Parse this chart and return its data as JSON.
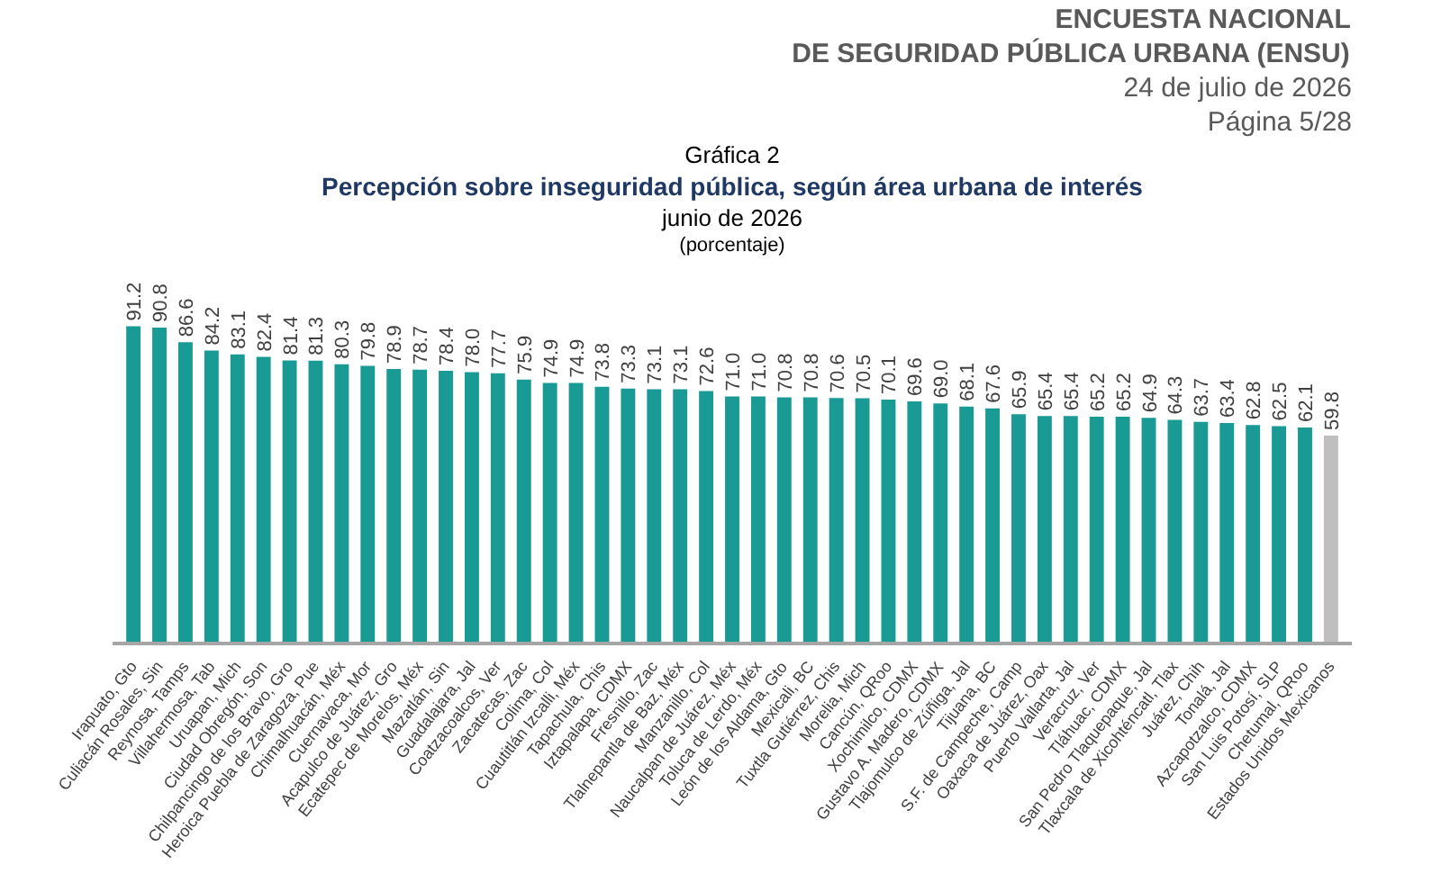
{
  "chart_data": {
    "type": "bar",
    "title": "Gráfica 2",
    "subtitle": "Percepción sobre inseguridad pública, según área urbana de interés",
    "annotations": [
      "ENCUESTA NACIONAL",
      "DE SEGURIDAD PÚBLICA URBANA (ENSU)",
      "24 de julio de 2026",
      "Página 5/28",
      "junio de 2026",
      "(porcentaje)"
    ],
    "categories": [
      "Irapuato, Gto",
      "Culiacán Rosales, Sin",
      "Reynosa, Tamps",
      "Villahermosa, Tab",
      "Uruapan, Mich",
      "Ciudad Obregón, Son",
      "Chilpancingo de los Bravo, Gro",
      "Heroica Puebla de Zaragoza, Pue",
      "Chimalhuacán, Méx",
      "Cuernavaca, Mor",
      "Acapulco de Juárez, Gro",
      "Ecatepec de Morelos, Méx",
      "Mazatlán, Sin",
      "Guadalajara, Jal",
      "Coatzacoalcos, Ver",
      "Zacatecas, Zac",
      "Colima, Col",
      "Cuautitlán Izcalli, Méx",
      "Tapachula, Chis",
      "Iztapalapa, CDMX",
      "Fresnillo, Zac",
      "Tlalnepantla de Baz, Méx",
      "Manzanillo, Col",
      "Naucalpan de Juárez, Méx",
      "Toluca de Lerdo, Méx",
      "León de los Aldama, Gto",
      "Mexicali, BC",
      "Tuxtla Gutiérrez, Chis",
      "Morelia, Mich",
      "Cancún, QRoo",
      "Xochimilco, CDMX",
      "Gustavo A. Madero, CDMX",
      "Tlajomulco de Zúñiga, Jal",
      "Tijuana, BC",
      "S.F. de Campeche, Camp",
      "Oaxaca de Juárez, Oax",
      "Puerto Vallarta, Jal",
      "Veracruz, Ver",
      "Tláhuac, CDMX",
      "San Pedro Tlaquepaque, Jal",
      "Tlaxcala de Xicohténcatl, Tlax",
      "Juárez, Chih",
      "Tonalá, Jal",
      "Azcapotzalco, CDMX",
      "San Luis Potosí, SLP",
      "Chetumal, QRoo",
      "Estados Unidos Mexicanos"
    ],
    "values": [
      91.2,
      90.8,
      86.6,
      84.2,
      83.1,
      82.4,
      81.4,
      81.3,
      80.3,
      79.8,
      78.9,
      78.7,
      78.4,
      78.0,
      77.7,
      75.9,
      74.9,
      74.9,
      73.8,
      73.3,
      73.1,
      73.1,
      72.6,
      71.0,
      71.0,
      70.8,
      70.8,
      70.6,
      70.5,
      70.1,
      69.6,
      69.0,
      68.1,
      67.6,
      65.9,
      65.4,
      65.4,
      65.2,
      65.2,
      64.9,
      64.3,
      63.7,
      63.4,
      62.8,
      62.5,
      62.1,
      59.8
    ],
    "colors": [
      "#1a9a94",
      "#1a9a94",
      "#1a9a94",
      "#1a9a94",
      "#1a9a94",
      "#1a9a94",
      "#1a9a94",
      "#1a9a94",
      "#1a9a94",
      "#1a9a94",
      "#1a9a94",
      "#1a9a94",
      "#1a9a94",
      "#1a9a94",
      "#1a9a94",
      "#1a9a94",
      "#1a9a94",
      "#1a9a94",
      "#1a9a94",
      "#1a9a94",
      "#1a9a94",
      "#1a9a94",
      "#1a9a94",
      "#1a9a94",
      "#1a9a94",
      "#1a9a94",
      "#1a9a94",
      "#1a9a94",
      "#1a9a94",
      "#1a9a94",
      "#1a9a94",
      "#1a9a94",
      "#1a9a94",
      "#1a9a94",
      "#1a9a94",
      "#1a9a94",
      "#1a9a94",
      "#1a9a94",
      "#1a9a94",
      "#1a9a94",
      "#1a9a94",
      "#1a9a94",
      "#1a9a94",
      "#1a9a94",
      "#1a9a94",
      "#1a9a94",
      "#bfbfbf"
    ],
    "value_labels": [
      "91.2",
      "90.8",
      "86.6",
      "84.2",
      "83.1",
      "82.4",
      "81.4",
      "81.3",
      "80.3",
      "79.8",
      "78.9",
      "78.7",
      "78.4",
      "78.0",
      "77.7",
      "75.9",
      "74.9",
      "74.9",
      "73.8",
      "73.3",
      "73.1",
      "73.1",
      "72.6",
      "71.0",
      "71.0",
      "70.8",
      "70.8",
      "70.6",
      "70.5",
      "70.1",
      "69.6",
      "69.0",
      "68.1",
      "67.6",
      "65.9",
      "65.4",
      "65.4",
      "65.2",
      "65.2",
      "64.9",
      "64.3",
      "63.7",
      "63.4",
      "62.8",
      "62.5",
      "62.1",
      "59.8"
    ],
    "grid": false
  }
}
